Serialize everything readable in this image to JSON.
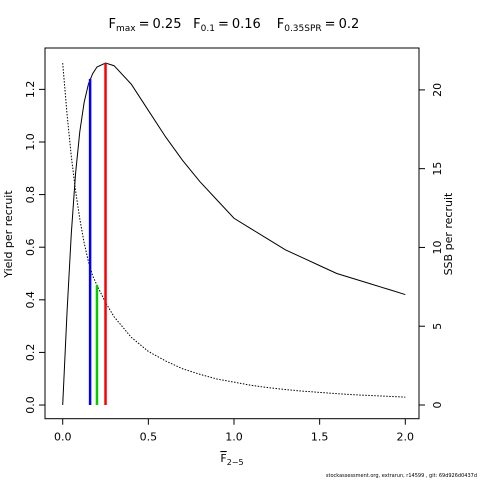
{
  "chart_data": {
    "type": "line",
    "title_parts": [
      {
        "symbol": "F",
        "subscript": "max",
        "operator": "=",
        "value": 0.25,
        "color": "#ff0000",
        "height": 1.3,
        "axis": "y"
      },
      {
        "symbol": "F",
        "subscript": "0.1",
        "operator": "=",
        "value": 0.16,
        "color": "#0000ff",
        "height": 1.24,
        "axis": "y"
      },
      {
        "symbol": "F",
        "subscript": "0.35SPR",
        "operator": "=",
        "value": 0.2,
        "color": "#00cd00",
        "height": 7.6,
        "axis": "y2"
      }
    ],
    "xlabel": {
      "symbol": "F",
      "subscript": "2−5"
    },
    "ylabel": "Yield per recruit",
    "y2label": "SSB per recruit",
    "footer": "stockassessment.org, extrarun, r14599 , git: 69d926d0437d",
    "x": [
      0,
      0.025,
      0.05,
      0.075,
      0.1,
      0.125,
      0.15,
      0.175,
      0.2,
      0.25,
      0.3,
      0.4,
      0.5,
      0.6,
      0.7,
      0.8,
      0.9,
      1.0,
      1.1,
      1.2,
      1.3,
      1.4,
      1.5,
      1.6,
      1.7,
      1.8,
      1.9,
      2.0
    ],
    "series": [
      {
        "name": "Yield per recruit",
        "color": "#000000",
        "dash": "none",
        "values": [
          0,
          0.35,
          0.65,
          0.88,
          1.04,
          1.15,
          1.22,
          1.26,
          1.285,
          1.3,
          1.29,
          1.22,
          1.12,
          1.02,
          0.93,
          0.85,
          0.78,
          0.71,
          0.67,
          0.63,
          0.59,
          0.56,
          0.53,
          0.5,
          0.48,
          0.46,
          0.44,
          0.42
        ]
      },
      {
        "name": "SSB per recruit",
        "color": "#000000",
        "dash": "1.5,1.5",
        "axis": "y2",
        "values": [
          21.7,
          18.5,
          15.8,
          13.6,
          11.8,
          10.3,
          9.1,
          8.2,
          7.6,
          6.5,
          5.6,
          4.3,
          3.4,
          2.8,
          2.3,
          1.95,
          1.65,
          1.45,
          1.25,
          1.1,
          0.98,
          0.88,
          0.8,
          0.72,
          0.65,
          0.6,
          0.55,
          0.5
        ]
      }
    ],
    "xlim": [
      -0.08,
      2.08
    ],
    "xticks": [
      {
        "value": 0,
        "label": "0.0"
      },
      0.5,
      {
        "value": 1,
        "label": "1.0"
      },
      1.5,
      {
        "value": 2,
        "label": "2.0"
      }
    ],
    "ylim": [
      -0.052,
      1.352
    ],
    "yticks": [
      {
        "value": 0,
        "label": "0.0"
      },
      0.2,
      0.4,
      0.6,
      0.8,
      {
        "value": 1,
        "label": "1.0"
      },
      1.2
    ],
    "y2lim": [
      -0.87,
      22.57
    ],
    "y2ticks": [
      0,
      5,
      10,
      15,
      20
    ]
  }
}
